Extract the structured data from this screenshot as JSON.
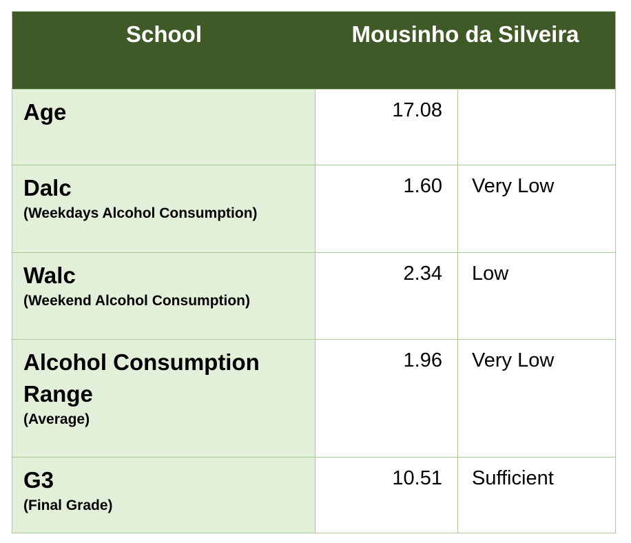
{
  "header": {
    "label_col": "School",
    "value_col": "Mousinho da Silveira"
  },
  "rows": [
    {
      "label": "Age",
      "sub": "",
      "value": "17.08",
      "rating": ""
    },
    {
      "label": "Dalc",
      "sub": "(Weekdays Alcohol Consumption)",
      "value": "1.60",
      "rating": "Very Low"
    },
    {
      "label": "Walc",
      "sub": "(Weekend Alcohol Consumption)",
      "value": "2.34",
      "rating": "Low"
    },
    {
      "label": "Alcohol Consumption Range",
      "sub": "(Average)",
      "value": "1.96",
      "rating": "Very Low"
    },
    {
      "label": "G3",
      "sub": "(Final Grade)",
      "value": "10.51",
      "rating": "Sufficient"
    }
  ],
  "colors": {
    "header_bg": "#3f5a27",
    "label_bg": "#e2efd9",
    "border": "#a9c99a"
  }
}
